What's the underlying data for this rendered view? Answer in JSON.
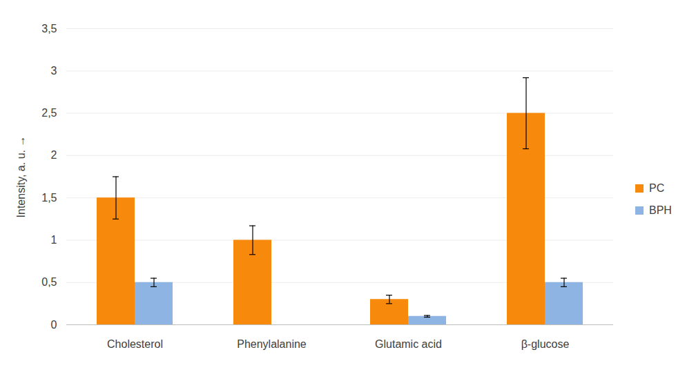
{
  "chart_data": {
    "type": "bar",
    "y_label": "Intensity, a. u.",
    "categories": [
      "Cholesterol",
      "Phenylalanine",
      "Glutamic acid",
      "β-glucose"
    ],
    "series": [
      {
        "name": "PC",
        "color": "#f7890c",
        "values": [
          1.5,
          1.0,
          0.3,
          2.5
        ],
        "errors": [
          0.25,
          0.17,
          0.05,
          0.42
        ]
      },
      {
        "name": "BPH",
        "color": "#8db4e2",
        "values": [
          0.5,
          null,
          0.1,
          0.5
        ],
        "errors": [
          0.05,
          null,
          0.01,
          0.05
        ]
      }
    ],
    "ylim": [
      0,
      3.5
    ],
    "yticks": [
      0,
      {
        "value": 0.5,
        "label": "0,5"
      },
      1,
      {
        "value": 1.5,
        "label": "1,5"
      },
      2,
      {
        "value": 2.5,
        "label": "2,5"
      },
      3,
      {
        "value": 3.5,
        "label": "3,5"
      }
    ],
    "grid": true,
    "legend": "right"
  }
}
